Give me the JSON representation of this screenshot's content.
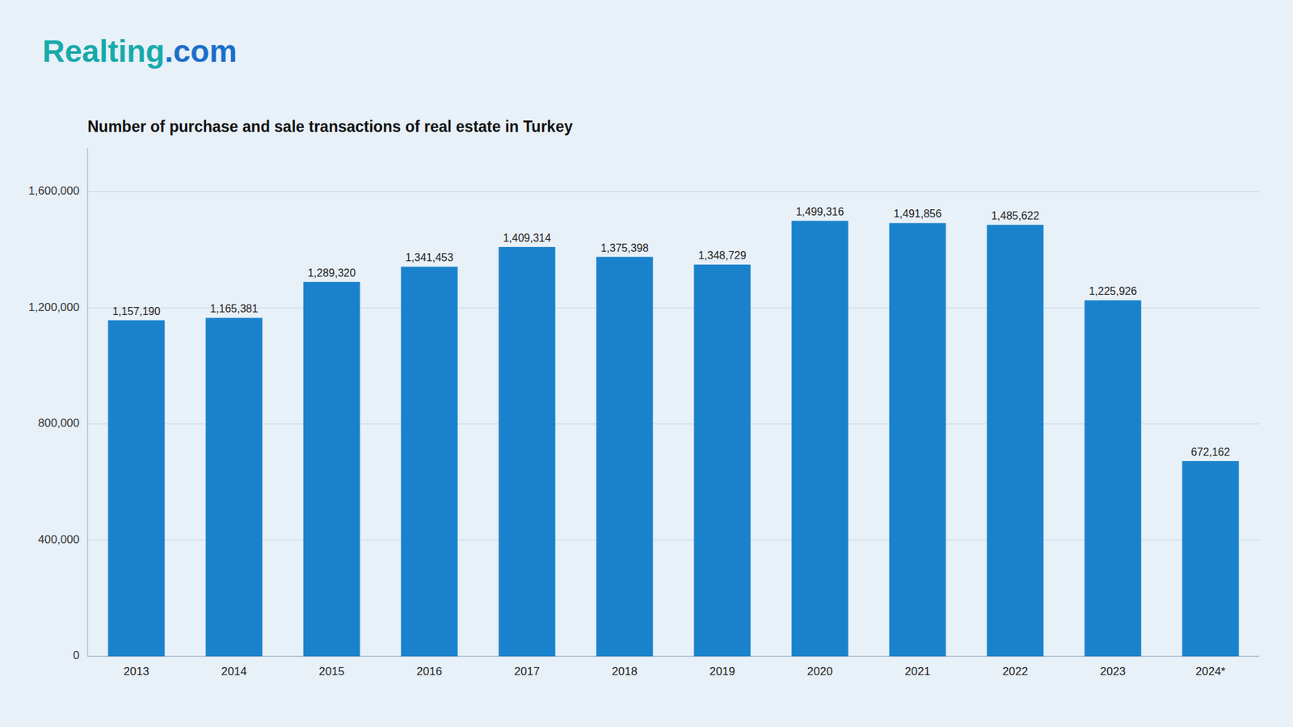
{
  "chart_data": {
    "type": "bar",
    "title": "Number of purchase and sale transactions of real estate in Turkey",
    "annotations": [
      {
        "text": "Realting",
        "color": "#17AAAA"
      },
      {
        "text": ".com",
        "color": "#1A6EC8"
      }
    ],
    "categories": [
      "2013",
      "2014",
      "2015",
      "2016",
      "2017",
      "2018",
      "2019",
      "2020",
      "2021",
      "2022",
      "2023",
      "2024*"
    ],
    "values": [
      1157190,
      1165381,
      1289320,
      1341453,
      1409314,
      1375398,
      1348729,
      1499316,
      1491856,
      1485622,
      1225926,
      672162
    ],
    "value_labels": [
      "1,157,190",
      "1,165,381",
      "1,289,320",
      "1,341,453",
      "1,409,314",
      "1,375,398",
      "1,348,729",
      "1,499,316",
      "1,491,856",
      "1,485,622",
      "1,225,926",
      "672,162"
    ],
    "data_labels": true,
    "color": "#1A82CC",
    "ylim": [
      0,
      1750000
    ],
    "yticks": [
      0,
      {
        "value": 400000,
        "label": "400,000"
      },
      {
        "value": 800000,
        "label": "800,000"
      },
      {
        "value": 1200000,
        "label": "1,200,000"
      },
      {
        "value": 1600000,
        "label": "1,600,000"
      }
    ],
    "grid": true
  }
}
